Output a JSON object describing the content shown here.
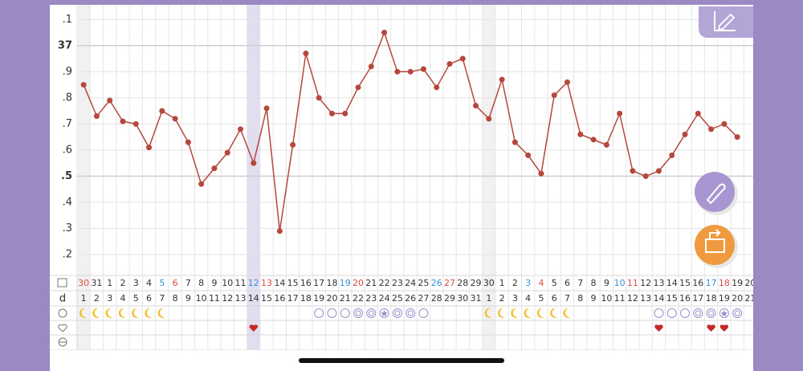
{
  "chart_data": {
    "type": "line",
    "categories": [
      "30",
      "31",
      "1",
      "2",
      "3",
      "4",
      "5",
      "6",
      "7",
      "8",
      "9",
      "10",
      "11",
      "12",
      "13",
      "14",
      "15",
      "16",
      "17",
      "18",
      "19",
      "20",
      "21",
      "22",
      "23",
      "24",
      "25",
      "26",
      "27",
      "28",
      "29",
      "30",
      "1",
      "2",
      "3",
      "4",
      "5",
      "6",
      "7",
      "8",
      "9",
      "10",
      "11",
      "12",
      "13",
      "14",
      "15",
      "16",
      "17",
      "18",
      "19",
      "20"
    ],
    "category_colors": [
      "#d9503f",
      "#333",
      "#333",
      "#333",
      "#333",
      "#333",
      "#3a8fd9",
      "#d9503f",
      "#333",
      "#333",
      "#333",
      "#333",
      "#333",
      "#3a8fd9",
      "#d9503f",
      "#333",
      "#333",
      "#333",
      "#333",
      "#333",
      "#3a8fd9",
      "#d9503f",
      "#333",
      "#333",
      "#333",
      "#333",
      "#333",
      "#3a8fd9",
      "#d9503f",
      "#333",
      "#333",
      "#333",
      "#333",
      "#333",
      "#3a8fd9",
      "#d9503f",
      "#333",
      "#333",
      "#333",
      "#333",
      "#333",
      "#3a8fd9",
      "#d9503f",
      "#333",
      "#333",
      "#333",
      "#333",
      "#333",
      "#3a8fd9",
      "#d9503f",
      "#333",
      "#333"
    ],
    "row_label": "d",
    "cycle_days": [
      1,
      2,
      3,
      4,
      5,
      6,
      7,
      8,
      9,
      10,
      11,
      12,
      13,
      14,
      15,
      16,
      17,
      18,
      19,
      20,
      21,
      22,
      23,
      24,
      25,
      26,
      27,
      28,
      29,
      30,
      31,
      1,
      2,
      3,
      4,
      5,
      6,
      7,
      8,
      9,
      10,
      11,
      12,
      13,
      14,
      15,
      16,
      17,
      18,
      19,
      20,
      21
    ],
    "series": [
      {
        "color": "#b5473c",
        "values": [
          36.85,
          36.73,
          36.79,
          36.71,
          36.7,
          36.61,
          36.75,
          36.72,
          36.63,
          36.47,
          36.53,
          36.59,
          36.68,
          36.55,
          36.76,
          36.29,
          36.62,
          36.97,
          36.8,
          36.74,
          36.74,
          36.84,
          36.92,
          37.05,
          36.9,
          36.9,
          36.91,
          36.84,
          36.93,
          36.95,
          36.77,
          36.72,
          36.87,
          36.63,
          36.58,
          36.51,
          36.81,
          36.86,
          36.66,
          36.64,
          36.62,
          36.74,
          36.52,
          36.5,
          36.52,
          36.58,
          36.66,
          36.74,
          36.68,
          36.7,
          36.65,
          null
        ]
      }
    ],
    "ylim": [
      36.12,
      37.15
    ],
    "yticks": [
      {
        "value": 37.1,
        "label": ".1"
      },
      37,
      {
        "value": 36.9,
        "label": ".9"
      },
      {
        "value": 36.8,
        "label": ".8"
      },
      {
        "value": 36.7,
        "label": ".7"
      },
      {
        "value": 36.6,
        "label": ".6"
      },
      {
        "value": 36.5,
        "label": ".5"
      },
      {
        "value": 36.4,
        "label": ".4"
      },
      {
        "value": 36.3,
        "label": ".3"
      },
      {
        "value": 36.2,
        "label": ".2"
      }
    ],
    "grid": true
  }
}
